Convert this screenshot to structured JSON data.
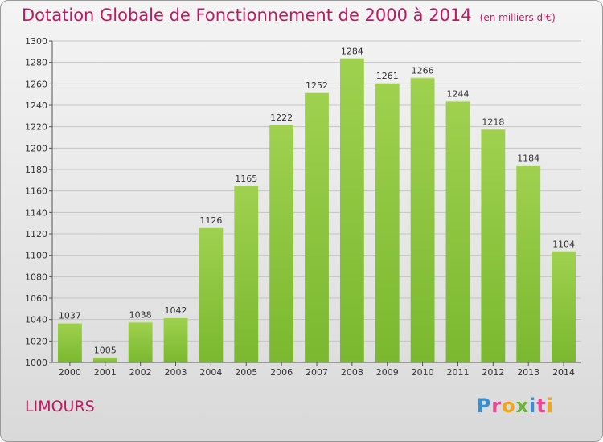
{
  "header": {
    "title": "Dotation Globale de Fonctionnement de 2000 à 2014",
    "subtitle": "(en milliers d'€)"
  },
  "footer": {
    "place": "LIMOURS",
    "brand": "Proxiti",
    "brand_colors": [
      "#3a8fd0",
      "#e54a95",
      "#f3a51a",
      "#6bb43a",
      "#3a8fd0",
      "#e54a95",
      "#f3a51a"
    ]
  },
  "chart_data": {
    "type": "bar",
    "categories": [
      "2000",
      "2001",
      "2002",
      "2003",
      "2004",
      "2005",
      "2006",
      "2007",
      "2008",
      "2009",
      "2010",
      "2011",
      "2012",
      "2013",
      "2014"
    ],
    "values": [
      1037,
      1005,
      1038,
      1042,
      1126,
      1165,
      1222,
      1252,
      1284,
      1261,
      1266,
      1244,
      1218,
      1184,
      1104
    ],
    "ylim": [
      1000,
      1300
    ],
    "yticks": [
      1000,
      1020,
      1040,
      1060,
      1080,
      1100,
      1120,
      1140,
      1160,
      1180,
      1200,
      1220,
      1240,
      1260,
      1280,
      1300
    ],
    "grid": true,
    "bar_color": "#7ab82f",
    "bar_color_light": "#9fd14f"
  }
}
